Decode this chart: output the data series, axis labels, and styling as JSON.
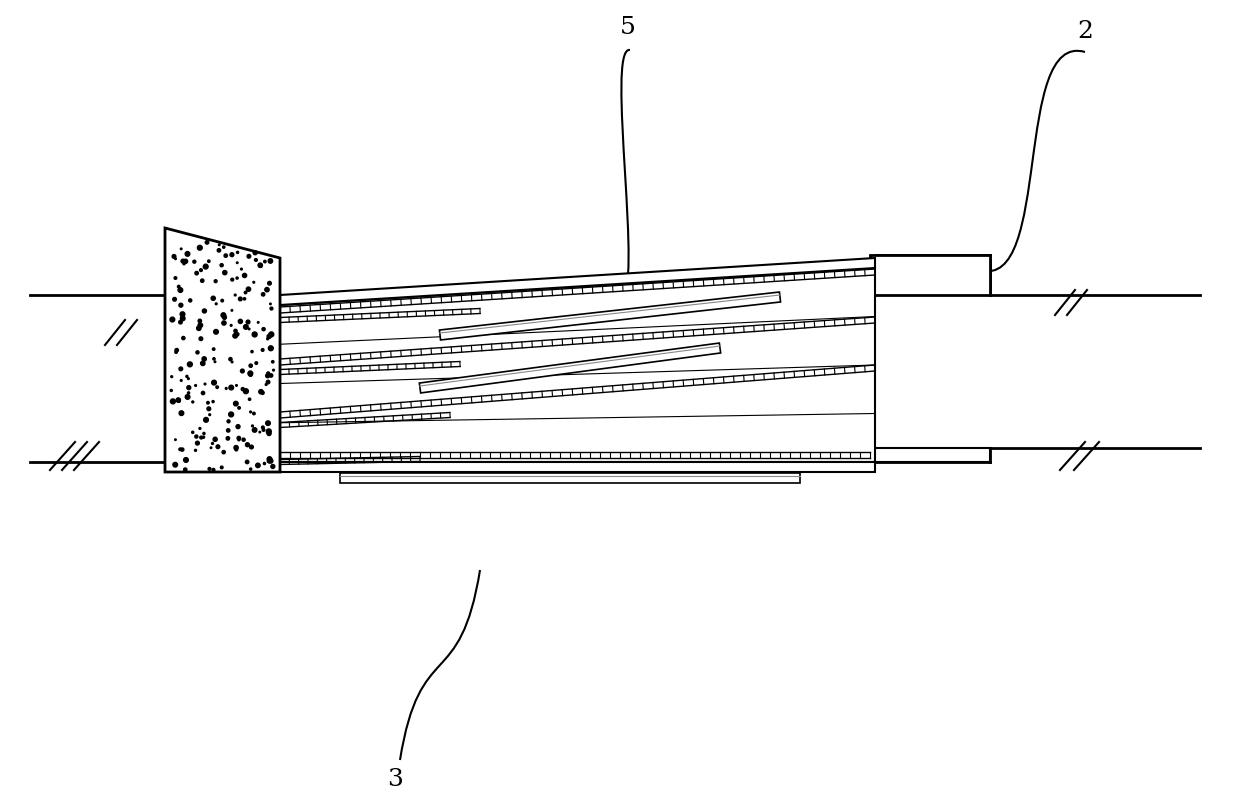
{
  "bg_color": "#ffffff",
  "line_color": "#000000",
  "label_5": "5",
  "label_2": "2",
  "label_3": "3",
  "fig_width": 12.4,
  "fig_height": 8.1
}
